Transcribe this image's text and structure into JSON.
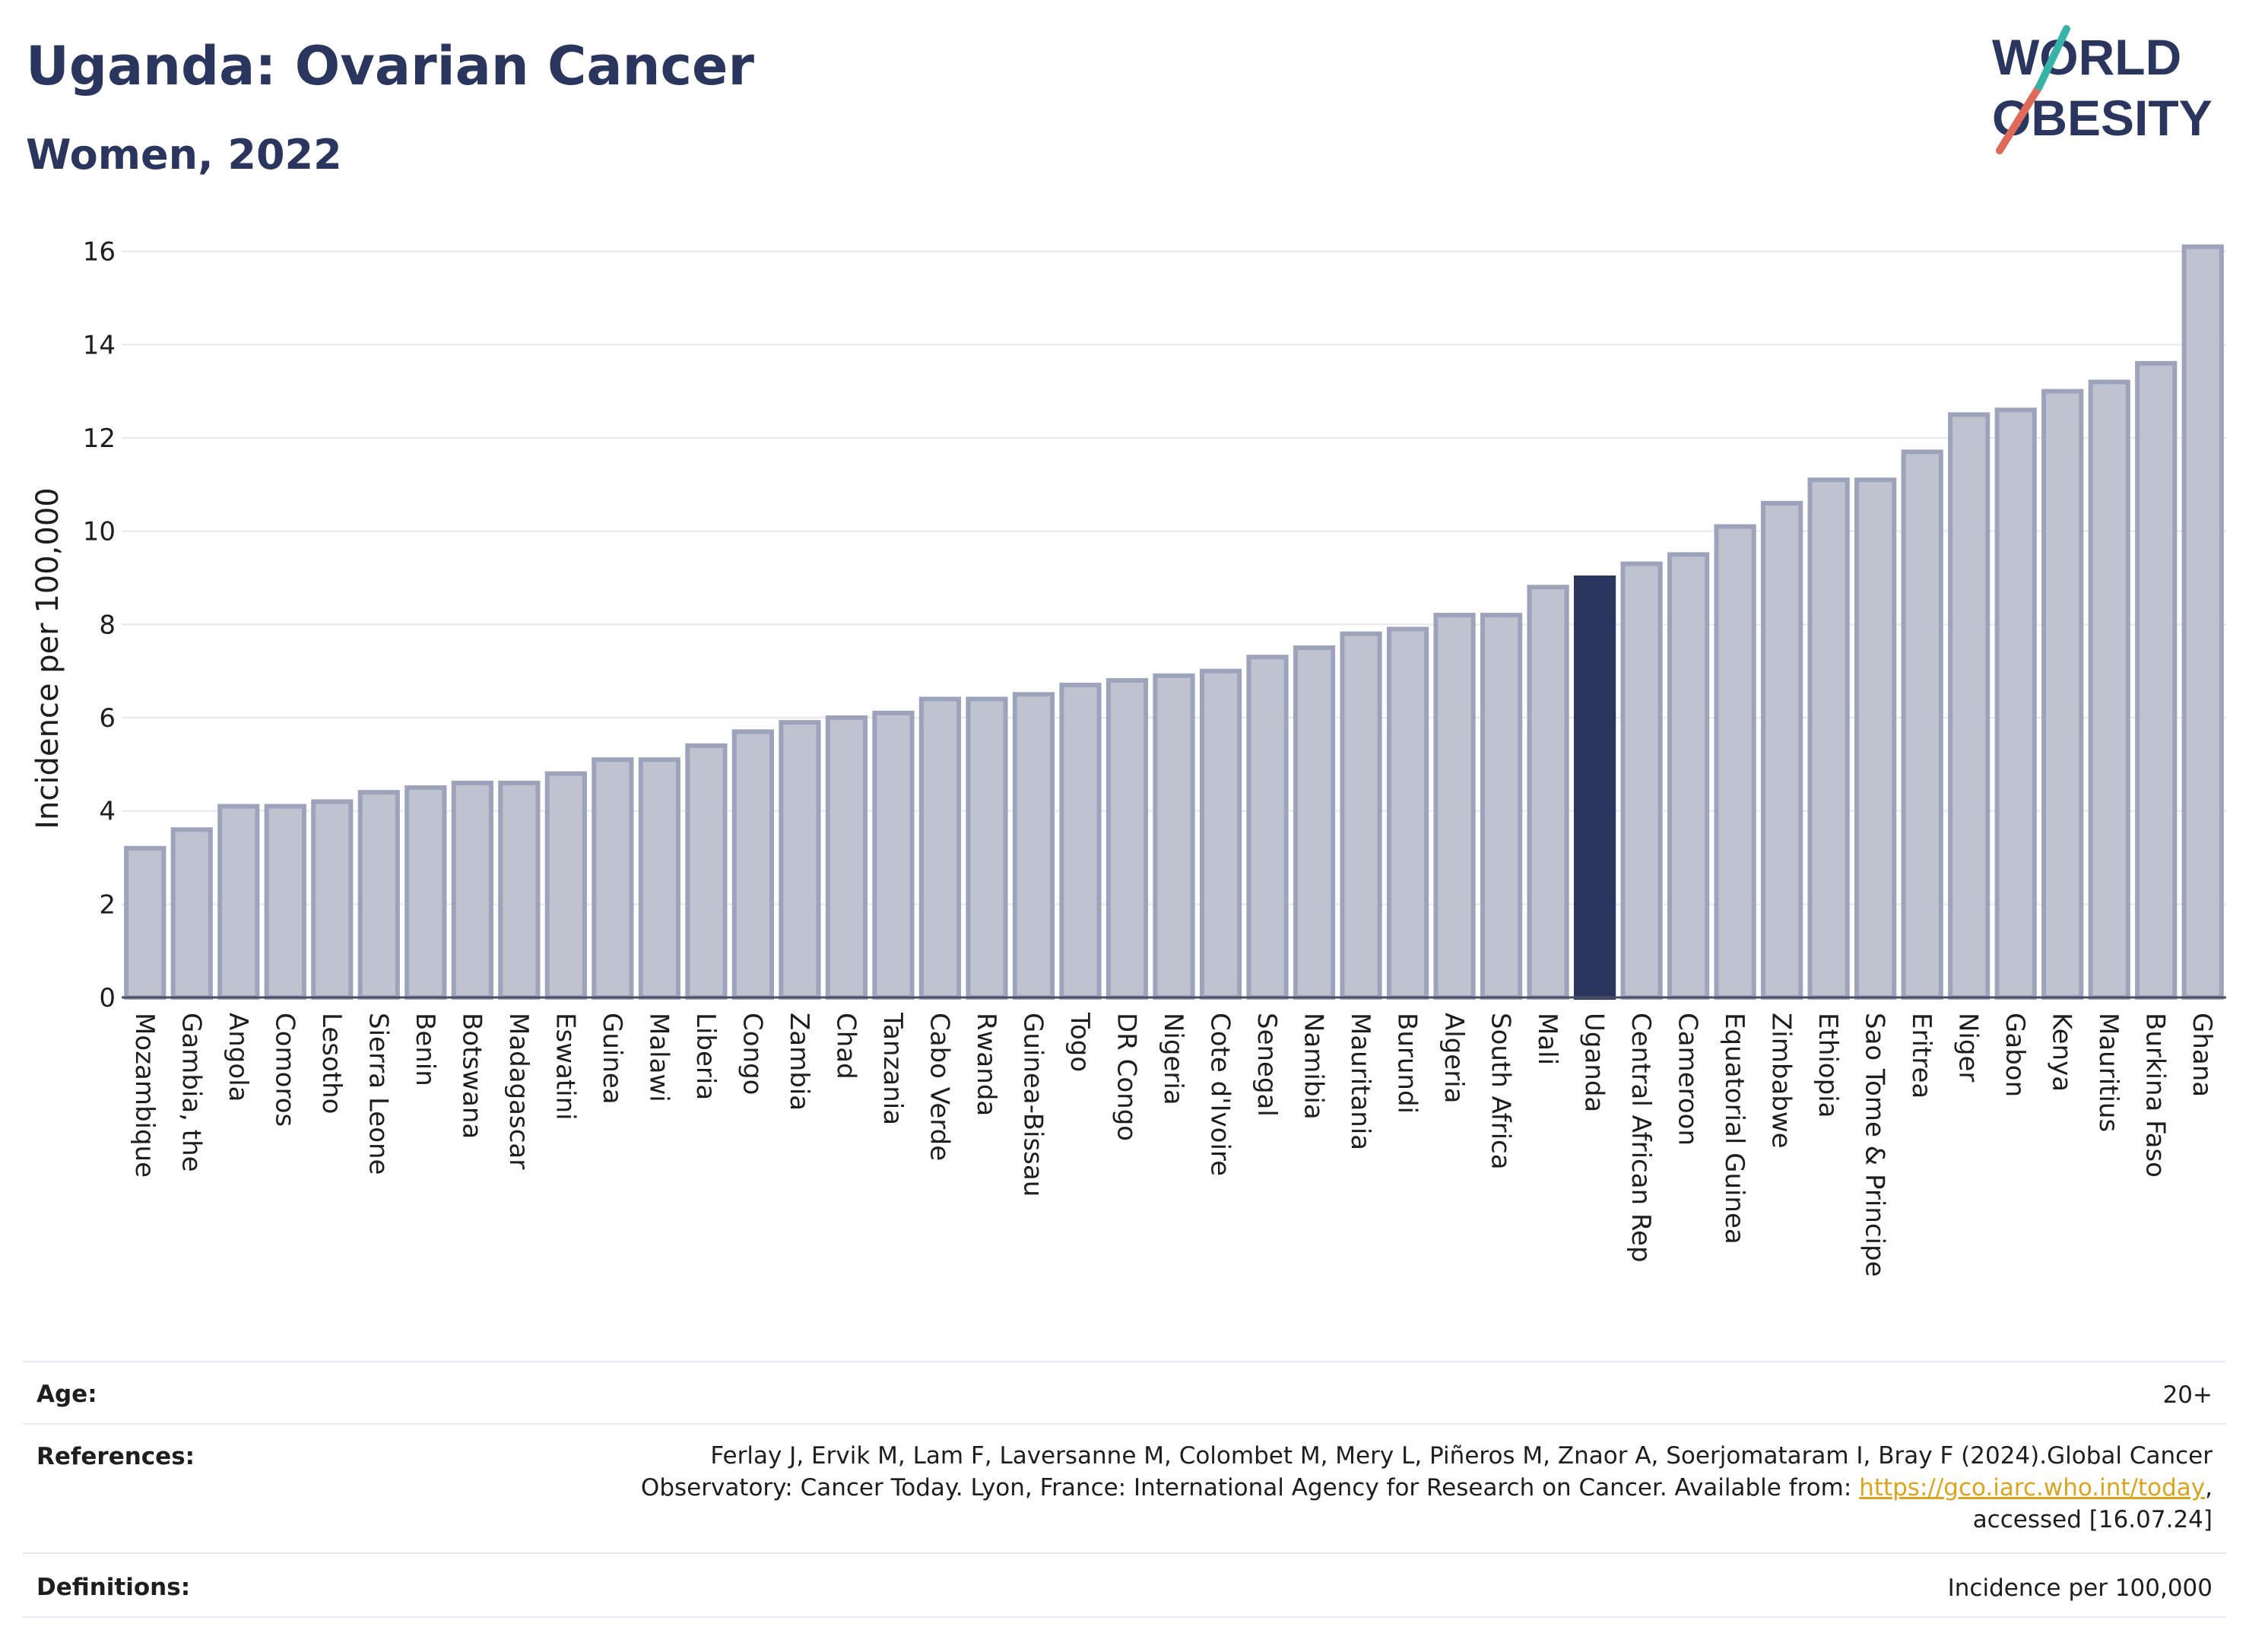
{
  "header": {
    "title": "Uganda: Ovarian Cancer",
    "subtitle": "Women, 2022"
  },
  "logo": {
    "line1": "WORLD",
    "line2": "OBESITY",
    "accent_colors": [
      "#e06a5a",
      "#37b3a8"
    ]
  },
  "colors": {
    "bar": "#bfc3d0",
    "bar_stroke": "#9da3ba",
    "highlight": "#2b365f",
    "grid": "#e8e8ec",
    "title": "#2b365f"
  },
  "chart_data": {
    "type": "bar",
    "title": "Uganda: Ovarian Cancer",
    "subtitle": "Women, 2022",
    "ylabel": "Incidence per 100,000",
    "xlabel": "",
    "ylim": [
      0,
      16.5
    ],
    "yticks": [
      0,
      2,
      4,
      6,
      8,
      10,
      12,
      14,
      16
    ],
    "grid": true,
    "highlight": "Uganda",
    "categories": [
      "Mozambique",
      "Gambia, the",
      "Angola",
      "Comoros",
      "Lesotho",
      "Sierra Leone",
      "Benin",
      "Botswana",
      "Madagascar",
      "Eswatini",
      "Guinea",
      "Malawi",
      "Liberia",
      "Congo",
      "Zambia",
      "Chad",
      "Tanzania",
      "Cabo Verde",
      "Rwanda",
      "Guinea-Bissau",
      "Togo",
      "DR Congo",
      "Nigeria",
      "Cote d'Ivoire",
      "Senegal",
      "Namibia",
      "Mauritania",
      "Burundi",
      "Algeria",
      "South Africa",
      "Mali",
      "Uganda",
      "Central African Rep",
      "Cameroon",
      "Equatorial Guinea",
      "Zimbabwe",
      "Ethiopia",
      "Sao Tome & Principe",
      "Eritrea",
      "Niger",
      "Gabon",
      "Kenya",
      "Mauritius",
      "Burkina Faso",
      "Ghana"
    ],
    "values": [
      3.2,
      3.6,
      4.1,
      4.1,
      4.2,
      4.4,
      4.5,
      4.6,
      4.6,
      4.8,
      5.1,
      5.1,
      5.4,
      5.7,
      5.9,
      6.0,
      6.1,
      6.4,
      6.4,
      6.5,
      6.7,
      6.8,
      6.9,
      7.0,
      7.3,
      7.5,
      7.8,
      7.9,
      8.2,
      8.2,
      8.8,
      9.0,
      9.3,
      9.5,
      10.1,
      10.6,
      11.1,
      11.1,
      11.7,
      12.5,
      12.6,
      13.0,
      13.2,
      13.6,
      16.1
    ]
  },
  "footer": {
    "age_label": "Age:",
    "age_value": "20+",
    "references_label": "References:",
    "references_line1": "Ferlay J, Ervik M, Lam F, Laversanne M, Colombet M, Mery L, Piñeros M, Znaor A, Soerjomataram I, Bray F (2024).Global Cancer",
    "references_line2_pre": "Observatory: Cancer Today. Lyon, France: International Agency for Research on Cancer. Available from: ",
    "references_link": "https://gco.iarc.who.int/today",
    "references_line2_post": ",",
    "references_line3": "accessed [16.07.24]",
    "definitions_label": "Definitions:",
    "definitions_value": "Incidence per 100,000"
  }
}
